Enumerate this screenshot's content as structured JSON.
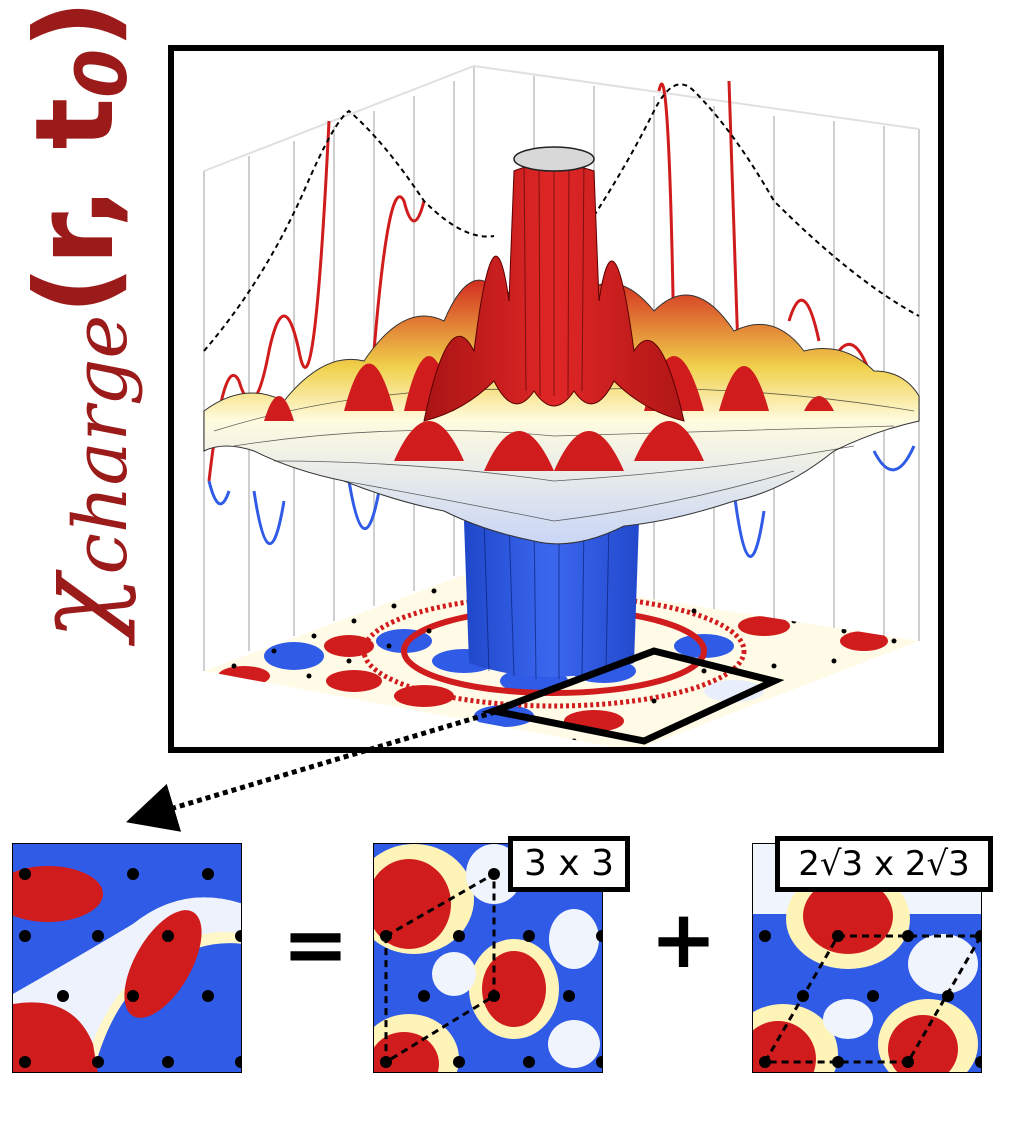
{
  "ylabel": {
    "chi": "χ",
    "sub": "charge",
    "args": "(r, t",
    "args_sub": "0",
    "close": ")"
  },
  "colors": {
    "red": "#d01c1c",
    "blue": "#2f5be6",
    "yellow": "#f5e64a",
    "label": "#9b1b1b"
  },
  "operators": {
    "equals": "=",
    "plus": "+"
  },
  "panels": [
    {
      "id": "total",
      "tag": ""
    },
    {
      "id": "three-by-three",
      "tag": "3 x 3"
    },
    {
      "id": "two-root-three",
      "tag": "2√3 x 2√3"
    }
  ]
}
